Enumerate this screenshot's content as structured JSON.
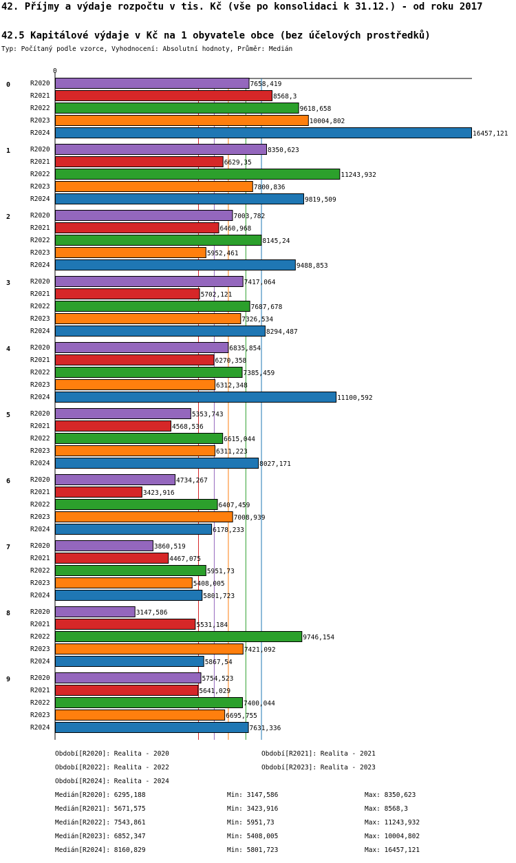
{
  "title_line": "42. Příjmy a výdaje rozpočtu v tis. Kč (vše po konsolidaci k 31.12.) - od roku 2017",
  "subtitle": "42.5 Kapitálové výdaje v Kč na 1 obyvatele obce (bez účelových prostředků)",
  "type_line": "Typ: Počítaný podle vzorce, Vyhodnocení: Absolutní hodnoty, Průměr: Medián",
  "colors": {
    "R2020": "#9467bd",
    "R2021": "#d62728",
    "R2022": "#2ca02c",
    "R2023": "#ff7f0e",
    "R2024": "#1f77b4"
  },
  "chart_data": {
    "type": "bar",
    "orientation": "horizontal",
    "title": "42.5 Kapitálové výdaje v Kč na 1 obyvatele obce (bez účelových prostředků)",
    "axis_zero_label": "0",
    "xlim": [
      0,
      16457.121
    ],
    "categories": [
      "0",
      "1",
      "2",
      "3",
      "4",
      "5",
      "6",
      "7",
      "8",
      "9"
    ],
    "series": [
      {
        "name": "R2020",
        "labels": [
          "7658,419",
          "8350,623",
          "7003,782",
          "7417,064",
          "6835,854",
          "5353,743",
          "4734,267",
          "3860,519",
          "3147,586",
          "5754,523"
        ],
        "values": [
          7658.419,
          8350.623,
          7003.782,
          7417.064,
          6835.854,
          5353.743,
          4734.267,
          3860.519,
          3147.586,
          5754.523
        ]
      },
      {
        "name": "R2021",
        "labels": [
          "8568,3",
          "6629,35",
          "6460,968",
          "5702,121",
          "6270,358",
          "4568,536",
          "3423,916",
          "4467,075",
          "5531,184",
          "5641,029"
        ],
        "values": [
          8568.3,
          6629.35,
          6460.968,
          5702.121,
          6270.358,
          4568.536,
          3423.916,
          4467.075,
          5531.184,
          5641.029
        ]
      },
      {
        "name": "R2022",
        "labels": [
          "9618,658",
          "11243,932",
          "8145,24",
          "7687,678",
          "7385,459",
          "6615,044",
          "6407,459",
          "5951,73",
          "9746,154",
          "7400,044"
        ],
        "values": [
          9618.658,
          11243.932,
          8145.24,
          7687.678,
          7385.459,
          6615.044,
          6407.459,
          5951.73,
          9746.154,
          7400.044
        ]
      },
      {
        "name": "R2023",
        "labels": [
          "10004,802",
          "7800,836",
          "5952,461",
          "7326,534",
          "6312,348",
          "6311,223",
          "7008,939",
          "5408,005",
          "7421,092",
          "6695,755"
        ],
        "values": [
          10004.802,
          7800.836,
          5952.461,
          7326.534,
          6312.348,
          6311.223,
          7008.939,
          5408.005,
          7421.092,
          6695.755
        ]
      },
      {
        "name": "R2024",
        "labels": [
          "16457,121",
          "9819,509",
          "9488,853",
          "8294,487",
          "11100,592",
          "8027,171",
          "6178,233",
          "5801,723",
          "5867,54",
          "7631,336"
        ],
        "values": [
          16457.121,
          9819.509,
          9488.853,
          8294.487,
          11100.592,
          8027.171,
          6178.233,
          5801.723,
          5867.54,
          7631.336
        ]
      }
    ],
    "median_lines": [
      {
        "name": "R2020",
        "value": 6295.188
      },
      {
        "name": "R2021",
        "value": 5671.575
      },
      {
        "name": "R2022",
        "value": 7543.861
      },
      {
        "name": "R2023",
        "value": 6852.347
      },
      {
        "name": "R2024",
        "value": 8160.829
      }
    ]
  },
  "legend": {
    "periods": [
      "Období[R2020]: Realita - 2020",
      "Období[R2021]: Realita - 2021",
      "Období[R2022]: Realita - 2022",
      "Období[R2023]: Realita - 2023",
      "Období[R2024]: Realita - 2024"
    ],
    "stats": [
      {
        "median": "Medián[R2020]: 6295,188",
        "min": "Min: 3147,586",
        "max": "Max: 8350,623"
      },
      {
        "median": "Medián[R2021]: 5671,575",
        "min": "Min: 3423,916",
        "max": "Max: 8568,3"
      },
      {
        "median": "Medián[R2022]: 7543,861",
        "min": "Min: 5951,73",
        "max": "Max: 11243,932"
      },
      {
        "median": "Medián[R2023]: 6852,347",
        "min": "Min: 5408,005",
        "max": "Max: 10004,802"
      },
      {
        "median": "Medián[R2024]: 8160,829",
        "min": "Min: 5801,723",
        "max": "Max: 16457,121"
      }
    ]
  }
}
